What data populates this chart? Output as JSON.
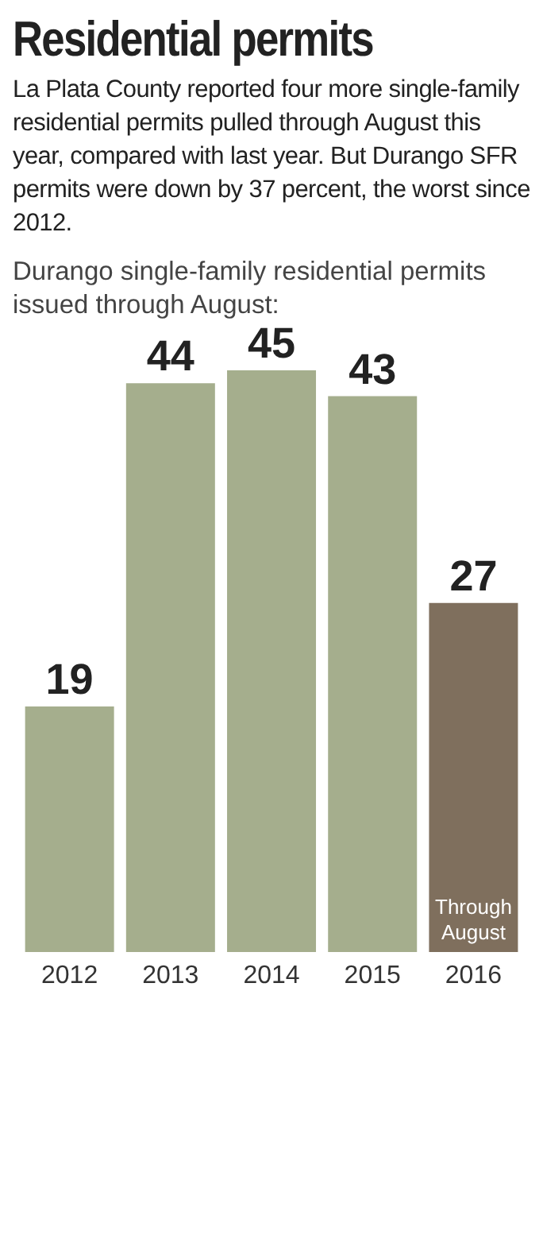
{
  "chart_data": {
    "type": "bar",
    "title": "Residential permits",
    "subtitle": "La Plata County reported four more single-family residential permits pulled through August this year, compared with last year. But Durango SFR permits were down by 37 percent, the worst since 2012.",
    "annotations": [
      "Durango single-family residential permits issued through August:",
      "Through August"
    ],
    "categories": [
      "2012",
      "2013",
      "2014",
      "2015",
      "2016"
    ],
    "values": [
      19,
      44,
      45,
      43,
      27
    ],
    "colors": [
      "#a5ae8d",
      "#a5ae8d",
      "#a5ae8d",
      "#a5ae8d",
      "#7f6f5d"
    ],
    "data_labels": true,
    "tick_labels": "x"
  }
}
